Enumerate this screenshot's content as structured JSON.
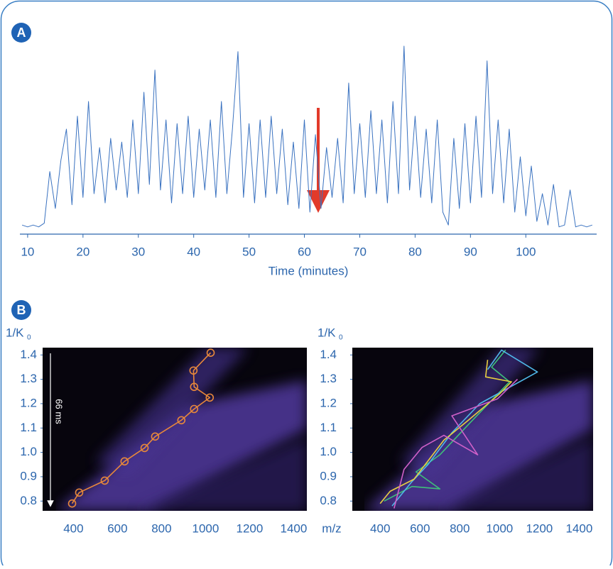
{
  "chart_data": [
    {
      "type": "line",
      "label": "A",
      "xlabel": "Time (minutes)",
      "xlim": [
        8.6,
        112.8
      ],
      "xticks": [
        10,
        20,
        30,
        40,
        50,
        60,
        70,
        80,
        90,
        100
      ],
      "ylim": [
        0,
        100
      ],
      "x": [
        9,
        10,
        11,
        12,
        13,
        14,
        15,
        16,
        17,
        18,
        19,
        20,
        21,
        22,
        23,
        24,
        25,
        26,
        27,
        28,
        29,
        30,
        31,
        32,
        33,
        34,
        35,
        36,
        37,
        38,
        39,
        40,
        41,
        42,
        43,
        44,
        45,
        46,
        47,
        48,
        49,
        50,
        51,
        52,
        53,
        54,
        55,
        56,
        57,
        58,
        59,
        60,
        61,
        62,
        63,
        64,
        65,
        66,
        67,
        68,
        69,
        70,
        71,
        72,
        73,
        74,
        75,
        76,
        77,
        78,
        79,
        80,
        81,
        82,
        83,
        84,
        85,
        86,
        87,
        88,
        89,
        90,
        91,
        92,
        93,
        94,
        95,
        96,
        97,
        98,
        99,
        100,
        101,
        102,
        103,
        104,
        105,
        106,
        107,
        108,
        109,
        110,
        111,
        112
      ],
      "series": [
        {
          "color": "#3a72c0",
          "values": [
            3,
            2,
            3,
            2,
            4,
            32,
            12,
            38,
            55,
            14,
            62,
            18,
            70,
            20,
            45,
            15,
            50,
            22,
            48,
            18,
            60,
            20,
            75,
            25,
            87,
            22,
            60,
            15,
            58,
            20,
            62,
            18,
            55,
            22,
            60,
            18,
            70,
            20,
            55,
            97,
            18,
            58,
            15,
            60,
            18,
            62,
            20,
            55,
            14,
            48,
            12,
            60,
            10,
            52,
            12,
            45,
            18,
            50,
            15,
            80,
            20,
            58,
            18,
            65,
            20,
            60,
            15,
            70,
            20,
            100,
            22,
            62,
            18,
            55,
            15,
            60,
            10,
            3,
            50,
            12,
            58,
            15,
            62,
            18,
            92,
            20,
            60,
            15,
            55,
            10,
            40,
            8,
            35,
            5,
            20,
            3,
            25,
            2,
            3,
            22,
            2,
            3,
            2,
            3
          ]
        }
      ]
    },
    {
      "type": "line",
      "label": "B",
      "ylabel": "1/K",
      "ylabel_subscript": "0",
      "annotation": "66 ms",
      "xlim": [
        260,
        1460
      ],
      "xticks": [
        400,
        600,
        800,
        1000,
        1200,
        1400
      ],
      "ylim": [
        0.76,
        1.43
      ],
      "yticks": [
        0.8,
        0.9,
        {
          "value": 1,
          "label": "1.0"
        },
        1.1,
        1.2,
        1.3,
        1.4
      ],
      "markers": true,
      "series": [
        {
          "color": "#e8883a",
          "x": [
            394,
            426,
            542,
            632,
            723,
            771,
            890,
            948,
            1019,
            948,
            945,
            1023
          ],
          "values": [
            0.79,
            0.835,
            0.884,
            0.963,
            1.018,
            1.065,
            1.132,
            1.178,
            1.225,
            1.269,
            1.336,
            1.409
          ]
        }
      ]
    },
    {
      "type": "line",
      "ylabel": "1/K",
      "ylabel_subscript": "0",
      "xlabel": "m/z",
      "xlim": [
        260,
        1470
      ],
      "xticks": [
        400,
        600,
        800,
        1000,
        1200,
        1400
      ],
      "ylim": [
        0.76,
        1.43
      ],
      "yticks": [
        0.8,
        0.9,
        {
          "value": 1,
          "label": "1.0"
        },
        1.1,
        1.2,
        1.3,
        1.4
      ],
      "markers": false,
      "series": [
        {
          "color": "#3fc07a",
          "x": [
            420,
            560,
            700,
            580,
            700,
            850,
            1050,
            960,
            1030
          ],
          "values": [
            0.8,
            0.86,
            0.85,
            0.92,
            0.99,
            1.12,
            1.29,
            1.35,
            1.42
          ]
        },
        {
          "color": "#4fb8e8",
          "x": [
            460,
            560,
            640,
            760,
            900,
            1190,
            1010,
            940
          ],
          "values": [
            0.78,
            0.88,
            0.95,
            1.08,
            1.2,
            1.33,
            1.42,
            1.34
          ]
        },
        {
          "color": "#e8d040",
          "x": [
            400,
            450,
            570,
            720,
            840,
            1000,
            1060,
            930,
            940
          ],
          "values": [
            0.79,
            0.84,
            0.89,
            1.05,
            1.13,
            1.24,
            1.29,
            1.31,
            1.38
          ]
        },
        {
          "color": "#d060c8",
          "x": [
            470,
            520,
            610,
            720,
            890,
            760,
            990,
            1090
          ],
          "values": [
            0.77,
            0.93,
            1.02,
            1.07,
            0.99,
            1.15,
            1.22,
            1.3
          ]
        }
      ]
    }
  ]
}
